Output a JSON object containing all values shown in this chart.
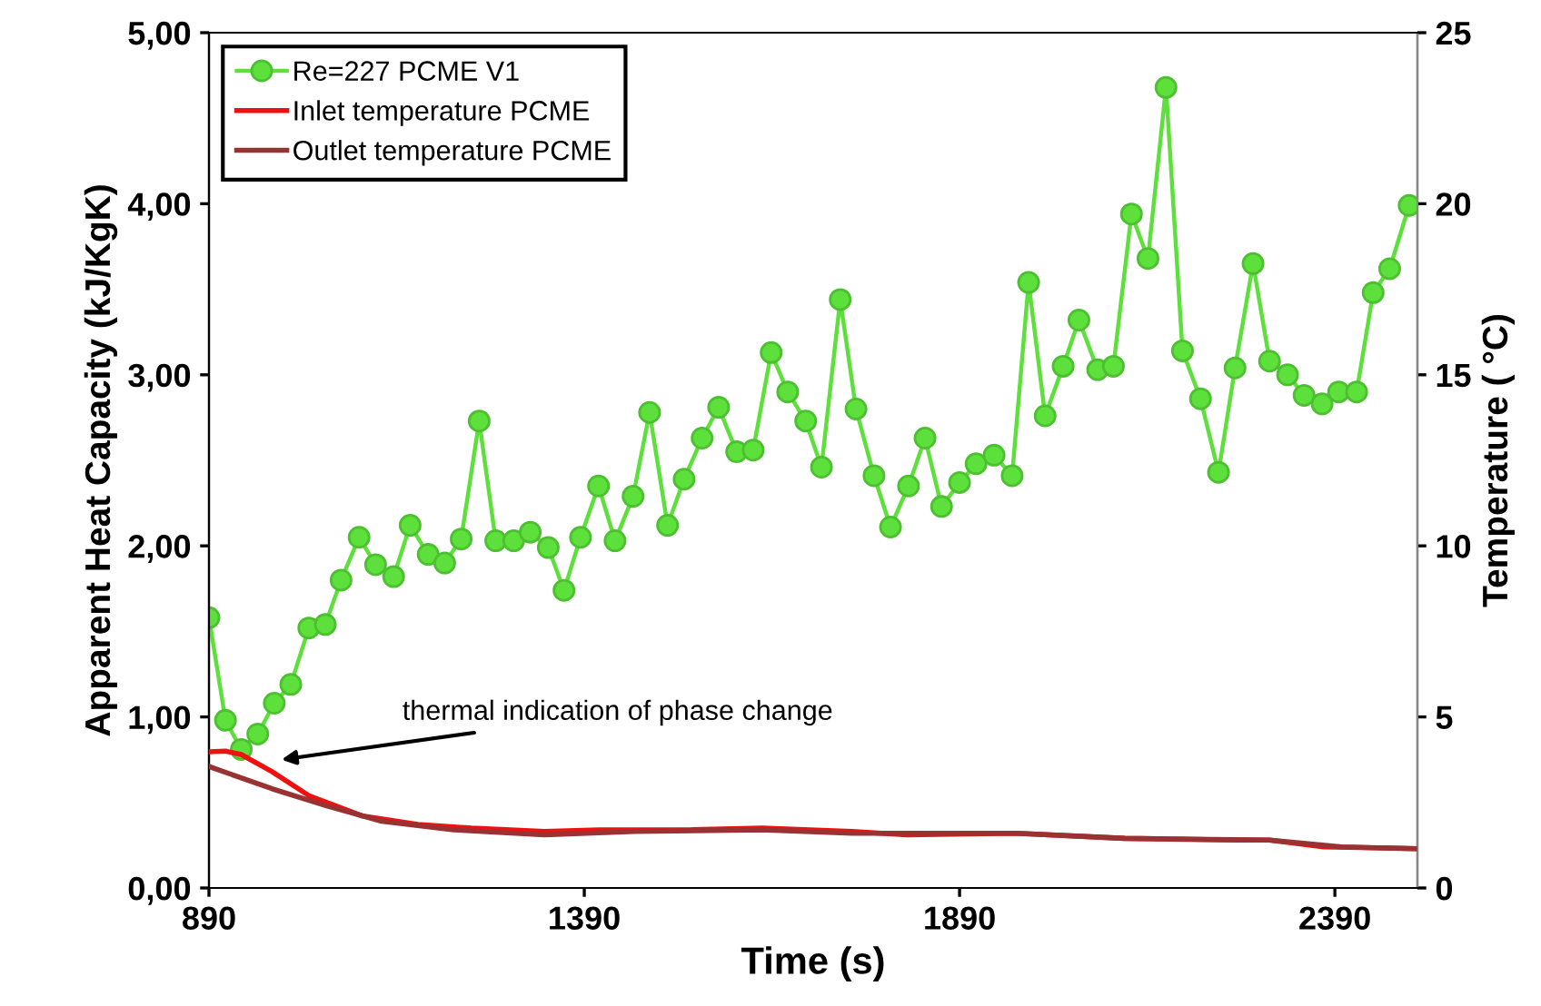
{
  "chart_data": {
    "type": "line",
    "xlabel": "Time (s)",
    "ylabel": "Apparent Heat Capacity (kJ/KgK)",
    "y2label": "Temperature ( °C)",
    "xlim": [
      890,
      2500
    ],
    "xticks": [
      890,
      1390,
      1890,
      2390
    ],
    "ylim": [
      0,
      5
    ],
    "yticks": [
      {
        "value": 0,
        "label": "0,00"
      },
      {
        "value": 1,
        "label": "1,00"
      },
      {
        "value": 2,
        "label": "2,00"
      },
      {
        "value": 3,
        "label": "3,00"
      },
      {
        "value": 4,
        "label": "4,00"
      },
      {
        "value": 5,
        "label": "5,00"
      }
    ],
    "y2lim": [
      0,
      25
    ],
    "y2ticks": [
      0,
      5,
      10,
      15,
      20,
      25
    ],
    "grid": false,
    "legend": "top left",
    "series": [
      {
        "name": "Re=227 PCME V1",
        "color": "#5ee03c",
        "marker": "circle",
        "x": [
          890,
          912,
          933,
          955,
          977,
          999,
          1023,
          1045,
          1066,
          1090,
          1112,
          1136,
          1158,
          1182,
          1204,
          1226,
          1250,
          1272,
          1296,
          1318,
          1342,
          1363,
          1385,
          1409,
          1431,
          1455,
          1477,
          1501,
          1523,
          1547,
          1569,
          1593,
          1615,
          1639,
          1661,
          1685,
          1706,
          1731,
          1752,
          1776,
          1798,
          1822,
          1844,
          1866,
          1890,
          1912,
          1936,
          1960,
          1982,
          2004,
          2028,
          2049,
          2074,
          2095,
          2119,
          2141,
          2165,
          2187,
          2211,
          2235,
          2257,
          2281,
          2303,
          2327,
          2349,
          2373,
          2395,
          2419,
          2441,
          2463,
          2489
        ],
        "values": [
          1.58,
          0.98,
          0.81,
          0.9,
          1.08,
          1.19,
          1.52,
          1.54,
          1.8,
          2.05,
          1.89,
          1.82,
          2.12,
          1.95,
          1.9,
          2.04,
          2.73,
          2.03,
          2.03,
          2.08,
          1.99,
          1.74,
          2.05,
          2.35,
          2.03,
          2.29,
          2.78,
          2.12,
          2.39,
          2.63,
          2.81,
          2.55,
          2.56,
          3.13,
          2.9,
          2.73,
          2.46,
          3.44,
          2.8,
          2.41,
          2.11,
          2.35,
          2.63,
          2.23,
          2.37,
          2.48,
          2.53,
          2.41,
          3.54,
          2.76,
          3.05,
          3.32,
          3.03,
          3.05,
          3.94,
          3.68,
          4.68,
          3.14,
          2.86,
          2.43,
          3.04,
          3.65,
          3.08,
          3.0,
          2.88,
          2.83,
          2.9,
          2.9,
          3.48,
          3.62,
          3.99
        ]
      },
      {
        "name": "Inlet temperature PCME",
        "color": "#ee1111",
        "axis": "y2",
        "marker": "none",
        "x": [
          890,
          912,
          933,
          974,
          1023,
          1095,
          1168,
          1240,
          1337,
          1409,
          1530,
          1627,
          1747,
          1820,
          1965,
          2110,
          2255,
          2303,
          2375,
          2496
        ],
        "values": [
          3.98,
          4.0,
          3.9,
          3.4,
          2.7,
          2.1,
          1.86,
          1.75,
          1.65,
          1.7,
          1.7,
          1.75,
          1.65,
          1.55,
          1.6,
          1.45,
          1.4,
          1.4,
          1.2,
          1.15
        ]
      },
      {
        "name": "Outlet temperature PCME",
        "color": "#993333",
        "axis": "y2",
        "marker": "none",
        "x": [
          890,
          974,
          1047,
          1120,
          1216,
          1337,
          1457,
          1627,
          1747,
          1965,
          2110,
          2303,
          2399,
          2496
        ],
        "values": [
          3.55,
          2.9,
          2.4,
          1.95,
          1.7,
          1.55,
          1.65,
          1.7,
          1.6,
          1.6,
          1.45,
          1.4,
          1.2,
          1.15
        ]
      }
    ],
    "annotations": [
      "thermal indication of phase change"
    ]
  }
}
